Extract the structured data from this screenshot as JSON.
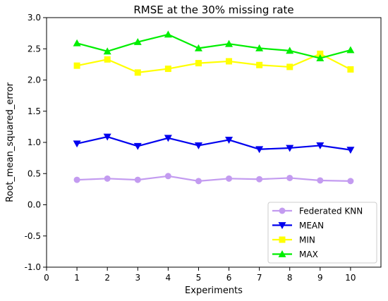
{
  "chart_data": {
    "type": "line",
    "title": "RMSE at the 30% missing rate",
    "xlabel": "Experiments",
    "ylabel": "Root_mean_squared_error",
    "xlim": [
      0,
      11
    ],
    "ylim": [
      -1.0,
      3.0
    ],
    "xticks": [
      0,
      1,
      2,
      3,
      4,
      5,
      6,
      7,
      8,
      9,
      10
    ],
    "yticks": [
      "-1.0",
      "-0.5",
      "0.0",
      "0.5",
      "1.0",
      "1.5",
      "2.0",
      "2.5",
      "3.0"
    ],
    "grid": false,
    "legend_position": "lower-right",
    "x": [
      1,
      2,
      3,
      4,
      5,
      6,
      7,
      8,
      9,
      10
    ],
    "series": [
      {
        "name": "Federated KNN",
        "marker": "circle",
        "color": "#c39bf0",
        "values": [
          0.4,
          0.42,
          0.4,
          0.46,
          0.38,
          0.42,
          0.41,
          0.43,
          0.39,
          0.38
        ]
      },
      {
        "name": "MEAN",
        "marker": "triangle-down",
        "color": "#0000ee",
        "values": [
          0.98,
          1.09,
          0.94,
          1.07,
          0.95,
          1.04,
          0.89,
          0.91,
          0.95,
          0.88
        ]
      },
      {
        "name": "MIN",
        "marker": "square",
        "color": "#ffff00",
        "values": [
          2.23,
          2.33,
          2.12,
          2.18,
          2.27,
          2.3,
          2.24,
          2.21,
          2.42,
          2.17
        ]
      },
      {
        "name": "MAX",
        "marker": "triangle-up",
        "color": "#00ee00",
        "values": [
          2.59,
          2.46,
          2.61,
          2.73,
          2.51,
          2.58,
          2.51,
          2.47,
          2.35,
          2.48
        ]
      }
    ]
  }
}
